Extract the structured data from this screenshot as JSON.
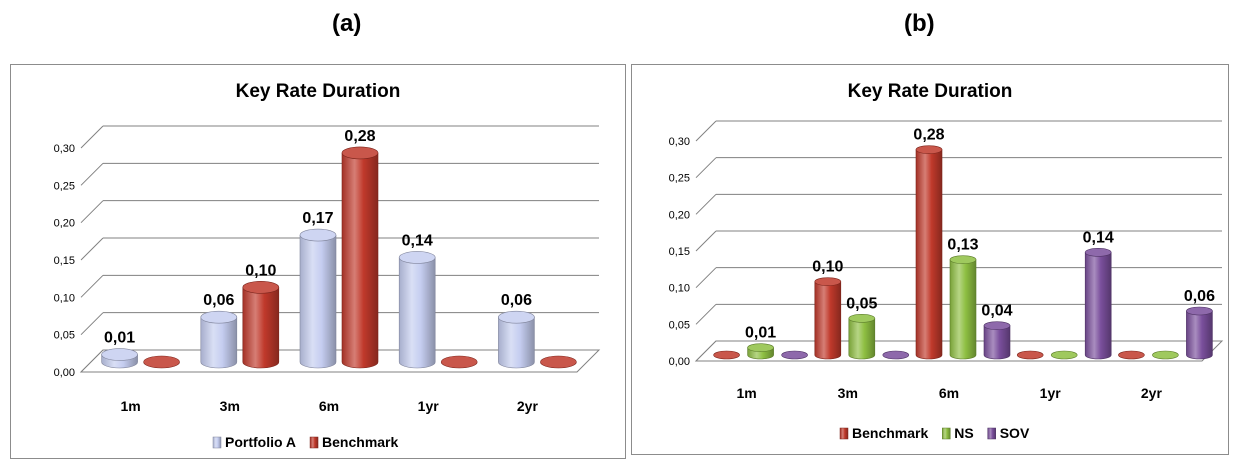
{
  "panels": {
    "a": "(a)",
    "b": "(b)"
  },
  "colors": {
    "portfolio_a": "#c5cdf0",
    "benchmark": "#c0392b",
    "ns": "#8ebf42",
    "sov": "#7a4f9c"
  },
  "chart_data": [
    {
      "type": "bar",
      "title": "Key Rate Duration",
      "categories": [
        "1m",
        "3m",
        "6m",
        "1yr",
        "2yr"
      ],
      "series": [
        {
          "name": "Portfolio A",
          "values": [
            0.01,
            0.06,
            0.17,
            0.14,
            0.06
          ],
          "labels": [
            "0,01",
            "0,06",
            "0,17",
            "0,14",
            "0,06"
          ]
        },
        {
          "name": "Benchmark",
          "values": [
            0.0,
            0.1,
            0.28,
            0.0,
            0.0
          ],
          "labels": [
            "",
            "0,10",
            "0,28",
            "",
            ""
          ]
        }
      ],
      "yticks": [
        "0,00",
        "0,05",
        "0,10",
        "0,15",
        "0,20",
        "0,25",
        "0,30"
      ],
      "ylim": [
        0,
        0.3
      ],
      "grid": true,
      "legend": "bottom"
    },
    {
      "type": "bar",
      "title": "Key Rate Duration",
      "categories": [
        "1m",
        "3m",
        "6m",
        "1yr",
        "2yr"
      ],
      "series": [
        {
          "name": "Benchmark",
          "values": [
            0.0,
            0.1,
            0.28,
            0.0,
            0.0
          ],
          "labels": [
            "",
            "0,10",
            "0,28",
            "",
            ""
          ]
        },
        {
          "name": "NS",
          "values": [
            0.01,
            0.05,
            0.13,
            0.0,
            0.0
          ],
          "labels": [
            "0,01",
            "0,05",
            "0,13",
            "",
            ""
          ]
        },
        {
          "name": "SOV",
          "values": [
            0.0,
            0.0,
            0.04,
            0.14,
            0.06
          ],
          "labels": [
            "",
            "",
            "0,04",
            "0,14",
            "0,06"
          ]
        }
      ],
      "yticks": [
        "0,00",
        "0,05",
        "0,10",
        "0,15",
        "0,20",
        "0,25",
        "0,30"
      ],
      "ylim": [
        0,
        0.3
      ],
      "grid": true,
      "legend": "bottom"
    }
  ]
}
